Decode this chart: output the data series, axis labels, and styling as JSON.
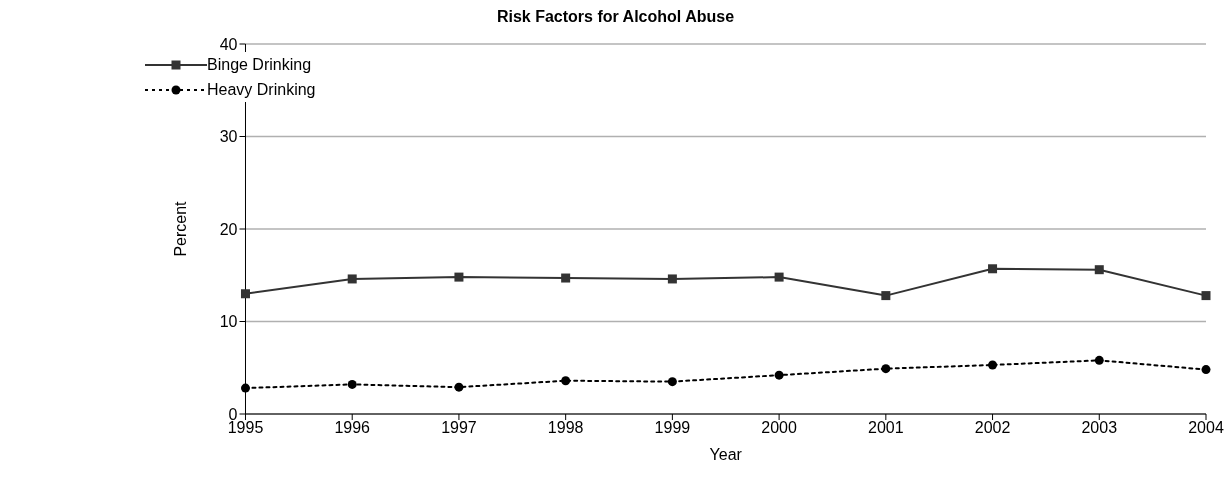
{
  "chart_data": {
    "type": "line",
    "title": "Risk Factors for Alcohol Abuse",
    "xlabel": "Year",
    "ylabel": "Percent",
    "categories": [
      "1995",
      "1996",
      "1997",
      "1998",
      "1999",
      "2000",
      "2001",
      "2002",
      "2003",
      "2004"
    ],
    "series": [
      {
        "name": "Binge Drinking",
        "color": "#333333",
        "marker": "square",
        "line_style": "solid",
        "values": [
          13.0,
          14.6,
          14.8,
          14.7,
          14.6,
          14.8,
          12.8,
          15.7,
          15.6,
          12.8
        ]
      },
      {
        "name": "Heavy Drinking",
        "color": "#000000",
        "marker": "circle",
        "line_style": "dotted",
        "values": [
          2.8,
          3.2,
          2.9,
          3.6,
          3.5,
          4.2,
          4.9,
          5.3,
          5.8,
          4.8
        ]
      }
    ],
    "ylim": [
      0,
      40
    ],
    "yticks": [
      0,
      10,
      20,
      30,
      40
    ],
    "grid": "y",
    "legend": "top left"
  }
}
